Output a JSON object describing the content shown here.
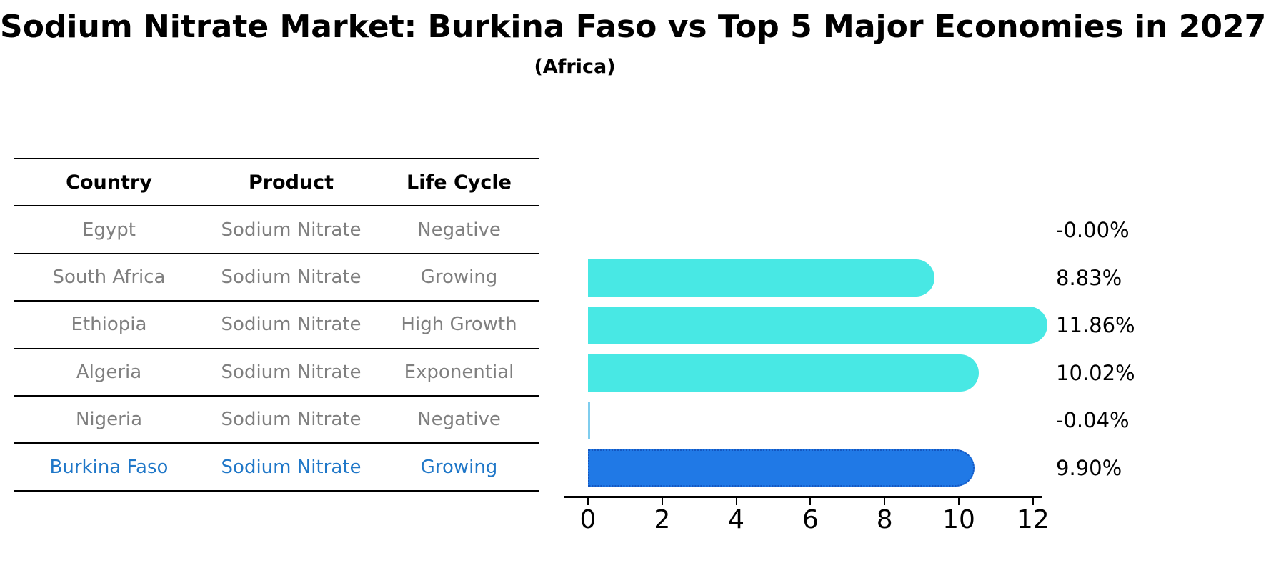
{
  "title": "Sodium Nitrate Market: Burkina Faso vs Top 5 Major Economies in 2027",
  "subtitle": "(Africa)",
  "table": {
    "headers": [
      "Country",
      "Product",
      "Life Cycle"
    ],
    "rows": [
      {
        "country": "Egypt",
        "product": "Sodium Nitrate",
        "life_cycle": "Negative",
        "highlight": false
      },
      {
        "country": "South Africa",
        "product": "Sodium Nitrate",
        "life_cycle": "Growing",
        "highlight": false
      },
      {
        "country": "Ethiopia",
        "product": "Sodium Nitrate",
        "life_cycle": "High Growth",
        "highlight": false
      },
      {
        "country": "Algeria",
        "product": "Sodium Nitrate",
        "life_cycle": "Exponential",
        "highlight": false
      },
      {
        "country": "Nigeria",
        "product": "Sodium Nitrate",
        "life_cycle": "Negative",
        "highlight": false
      },
      {
        "country": "Burkina Faso",
        "product": "Sodium Nitrate",
        "life_cycle": "Growing",
        "highlight": true
      }
    ]
  },
  "chart_data": {
    "type": "bar",
    "orientation": "horizontal",
    "title": "Sodium Nitrate Market: Burkina Faso vs Top 5 Major Economies in 2027",
    "subtitle": "(Africa)",
    "categories": [
      "Egypt",
      "South Africa",
      "Ethiopia",
      "Algeria",
      "Nigeria",
      "Burkina Faso"
    ],
    "values": [
      -0.0,
      8.83,
      11.86,
      10.02,
      -0.04,
      9.9
    ],
    "value_labels": [
      "-0.00%",
      "8.83%",
      "11.86%",
      "10.02%",
      "-0.04%",
      "9.90%"
    ],
    "x_ticks": [
      0,
      2,
      4,
      6,
      8,
      10,
      12
    ],
    "xlim": [
      -0.64,
      12.3
    ],
    "grid": false,
    "legend": "none",
    "highlight_category": "Burkina Faso",
    "colors": {
      "bar": "#48e8e4",
      "highlight_bar": "#2079e6",
      "highlight_border": "#1456c0",
      "negative_sliver": "#7fcdee",
      "muted_text": "#7f7f7f",
      "highlight_text": "#1f77c8",
      "axis": "#000000"
    }
  }
}
